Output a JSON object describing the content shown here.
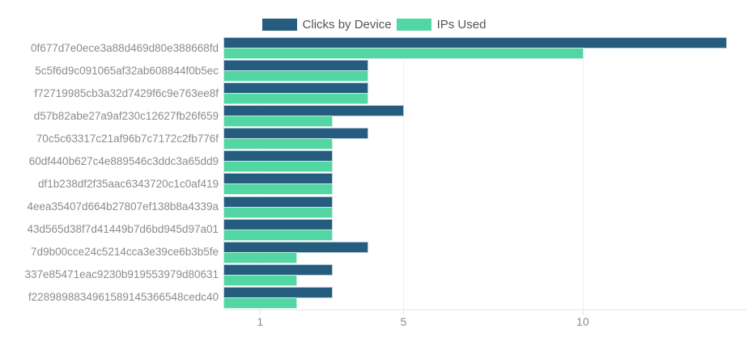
{
  "chart_data": {
    "type": "bar",
    "orientation": "horizontal",
    "title": "",
    "xlabel": "",
    "ylabel": "",
    "xlim": [
      0,
      14
    ],
    "xticks": [
      1,
      5,
      10
    ],
    "grid": true,
    "legend_position": "top",
    "categories": [
      "0f677d7e0ece3a88d469d80e388668fd",
      "5c5f6d9c091065af32ab608844f0b5ec",
      "f72719985cb3a32d7429f6c9e763ee8f",
      "d57b82abe27a9af230c12627fb26f659",
      "70c5c63317c21af96b7c7172c2fb776f",
      "60df440b627c4e889546c3ddc3a65dd9",
      "df1b238df2f35aac6343720c1c0af419",
      "4eea35407d664b27807ef138b8a4339a",
      "43d565d38f7d41449b7d6bd945d97a01",
      "7d9b00cce24c5214cca3e39ce6b3b5fe",
      "337e85471eac9230b919553979d80631",
      "f2289898834961589145366548cedc40"
    ],
    "series": [
      {
        "name": "Clicks by Device",
        "color": "#265d7f",
        "values": [
          14,
          4,
          4,
          5,
          4,
          3,
          3,
          3,
          3,
          4,
          3,
          3
        ]
      },
      {
        "name": "IPs Used",
        "color": "#51d6a4",
        "values": [
          10,
          4,
          4,
          3,
          3,
          3,
          3,
          3,
          3,
          2,
          2,
          2
        ]
      }
    ]
  },
  "colors": {
    "gridline": "#edf1f3",
    "axis_line": "#e2e6e9",
    "category_label": "#8c8c8c",
    "tick_label": "#8c8c8c",
    "legend_text": "#555555"
  }
}
